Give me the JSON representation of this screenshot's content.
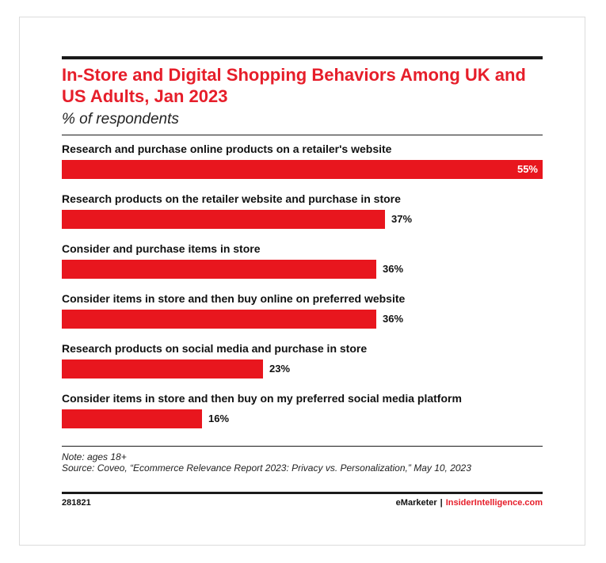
{
  "chart_data": {
    "type": "bar",
    "orientation": "horizontal",
    "title": "In-Store and Digital Shopping Behaviors Among UK and US Adults, Jan 2023",
    "subtitle": "% of respondents",
    "categories": [
      "Research and purchase online products on a retailer's website",
      "Research products on the retailer website and purchase in store",
      "Consider and purchase items in store",
      "Consider items in store and then buy online on preferred website",
      "Research products on social media and purchase in store",
      "Consider items in store and then buy on my preferred social media platform"
    ],
    "values": [
      55,
      37,
      36,
      36,
      23,
      16
    ],
    "value_labels": [
      "55%",
      "37%",
      "36%",
      "36%",
      "23%",
      "16%"
    ],
    "unit": "%",
    "xlim": [
      0,
      55
    ],
    "grid": false,
    "colors": {
      "bar": "#e8161e",
      "title": "#e61e2a"
    }
  },
  "notes": {
    "note": "Note: ages 18+",
    "source": "Source: Coveo, “Ecommerce Relevance Report 2023: Privacy vs. Personalization,” May 10, 2023"
  },
  "footer": {
    "id": "281821",
    "brand_primary": "eMarketer",
    "separator": "|",
    "brand_secondary": "InsiderIntelligence.com"
  }
}
